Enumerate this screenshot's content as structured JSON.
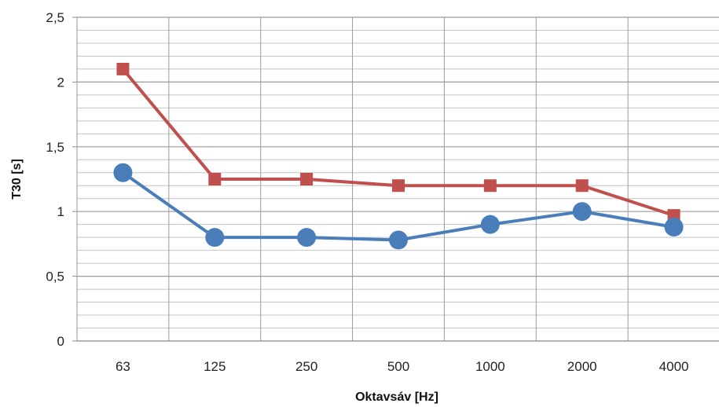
{
  "chart_data": {
    "type": "line",
    "title": "",
    "xlabel": "Oktavsáv [Hz]",
    "ylabel": "T30 [s]",
    "categories": [
      "63",
      "125",
      "250",
      "500",
      "1000",
      "2000",
      "4000"
    ],
    "y_ticks": [
      "0",
      "0,5",
      "1",
      "1,5",
      "2",
      "2,5"
    ],
    "ylim": [
      0,
      2.5
    ],
    "grid": true,
    "series": [
      {
        "marker": "square",
        "color": "#c0504d",
        "values": [
          2.1,
          1.25,
          1.25,
          1.2,
          1.2,
          1.2,
          0.97
        ]
      },
      {
        "marker": "circle",
        "color": "#4a7ebb",
        "values": [
          1.3,
          0.8,
          0.8,
          0.78,
          0.9,
          1.0,
          0.88
        ]
      }
    ]
  }
}
